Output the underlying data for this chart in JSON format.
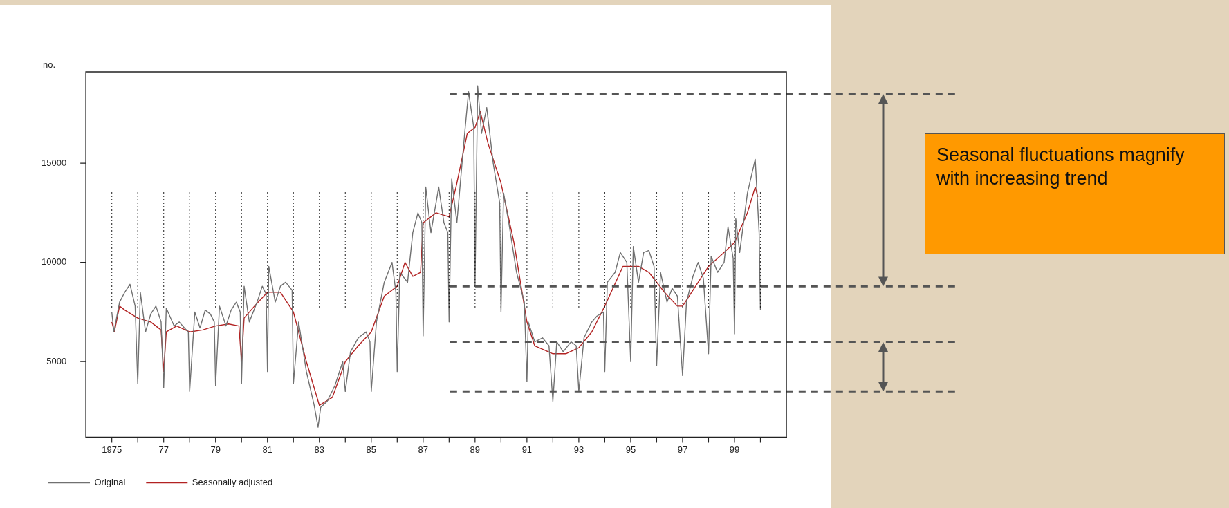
{
  "chart_data": {
    "type": "line",
    "ylabel": "no.",
    "xlim": [
      1974,
      2001
    ],
    "ylim": [
      1200,
      19600
    ],
    "yticks": [
      5000,
      10000,
      15000
    ],
    "xticks": [
      1975,
      {
        "value": 1976,
        "label": null
      },
      {
        "value": 1977,
        "label": "77"
      },
      {
        "value": 1978,
        "label": null
      },
      {
        "value": 1979,
        "label": "79"
      },
      {
        "value": 1980,
        "label": null
      },
      {
        "value": 1981,
        "label": "81"
      },
      {
        "value": 1982,
        "label": null
      },
      {
        "value": 1983,
        "label": "83"
      },
      {
        "value": 1984,
        "label": null
      },
      {
        "value": 1985,
        "label": "85"
      },
      {
        "value": 1986,
        "label": null
      },
      {
        "value": 1987,
        "label": "87"
      },
      {
        "value": 1988,
        "label": null
      },
      {
        "value": 1989,
        "label": "89"
      },
      {
        "value": 1990,
        "label": null
      },
      {
        "value": 1991,
        "label": "91"
      },
      {
        "value": 1992,
        "label": null
      },
      {
        "value": 1993,
        "label": "93"
      },
      {
        "value": 1994,
        "label": null
      },
      {
        "value": 1995,
        "label": "95"
      },
      {
        "value": 1996,
        "label": null
      },
      {
        "value": 1997,
        "label": "97"
      },
      {
        "value": 1998,
        "label": null
      },
      {
        "value": 1999,
        "label": "99"
      },
      {
        "value": 2000,
        "label": null
      }
    ],
    "grid": false,
    "legend": "bottom",
    "marker": "none",
    "series": [
      {
        "name": "Original",
        "color": "#707070",
        "x": [
          1975.0,
          1975.08,
          1975.3,
          1975.5,
          1975.7,
          1975.9,
          1976.0,
          1976.1,
          1976.3,
          1976.5,
          1976.7,
          1976.9,
          1977.0,
          1977.1,
          1977.4,
          1977.6,
          1977.8,
          1977.95,
          1978.0,
          1978.2,
          1978.4,
          1978.6,
          1978.8,
          1978.95,
          1979.0,
          1979.15,
          1979.4,
          1979.6,
          1979.8,
          1979.95,
          1980.0,
          1980.1,
          1980.3,
          1980.6,
          1980.8,
          1980.95,
          1981.0,
          1981.05,
          1981.3,
          1981.5,
          1981.7,
          1981.95,
          1982.0,
          1982.2,
          1982.5,
          1982.8,
          1982.95,
          1983.05,
          1983.3,
          1983.6,
          1983.9,
          1984.0,
          1984.2,
          1984.5,
          1984.8,
          1984.95,
          1985.0,
          1985.2,
          1985.5,
          1985.8,
          1985.95,
          1986.0,
          1986.1,
          1986.4,
          1986.6,
          1986.8,
          1986.95,
          1987.0,
          1987.1,
          1987.3,
          1987.6,
          1987.8,
          1987.95,
          1988.0,
          1988.1,
          1988.3,
          1988.6,
          1988.75,
          1988.95,
          1989.0,
          1989.1,
          1989.25,
          1989.45,
          1989.7,
          1989.95,
          1990.0,
          1990.1,
          1990.3,
          1990.6,
          1990.9,
          1991.0,
          1991.05,
          1991.3,
          1991.6,
          1991.85,
          1992.0,
          1992.15,
          1992.4,
          1992.7,
          1992.9,
          1993.0,
          1993.2,
          1993.5,
          1993.7,
          1993.95,
          1994.0,
          1994.1,
          1994.4,
          1994.6,
          1994.85,
          1995.0,
          1995.1,
          1995.3,
          1995.5,
          1995.7,
          1995.9,
          1996.0,
          1996.15,
          1996.4,
          1996.6,
          1996.8,
          1997.0,
          1997.15,
          1997.4,
          1997.6,
          1997.8,
          1998.0,
          1998.1,
          1998.35,
          1998.6,
          1998.75,
          1998.95,
          1999.0,
          1999.05,
          1999.2,
          1999.5,
          1999.8,
          1999.95,
          2000.0
        ],
        "values": [
          7500,
          6500,
          8000,
          8500,
          8900,
          7800,
          3900,
          8500,
          6500,
          7400,
          7800,
          7000,
          3700,
          7700,
          6800,
          7000,
          6700,
          6500,
          3500,
          7500,
          6700,
          7600,
          7400,
          7000,
          3800,
          7800,
          6800,
          7600,
          8000,
          7500,
          3900,
          8800,
          7000,
          8000,
          8800,
          8400,
          4500,
          9800,
          8000,
          8800,
          9000,
          8600,
          3900,
          7000,
          4500,
          2800,
          1700,
          2700,
          3000,
          3800,
          5000,
          3500,
          5500,
          6200,
          6500,
          6000,
          3500,
          7000,
          9000,
          10000,
          8500,
          4500,
          9500,
          9000,
          11500,
          12500,
          12000,
          6300,
          13800,
          11500,
          13800,
          12000,
          11500,
          7000,
          14200,
          12000,
          16500,
          18600,
          16800,
          8800,
          18900,
          16500,
          17800,
          15000,
          13000,
          7500,
          13500,
          12000,
          9500,
          8000,
          4000,
          7000,
          6000,
          6200,
          5800,
          3000,
          6000,
          5500,
          6000,
          5800,
          3500,
          6200,
          7000,
          7300,
          7500,
          4500,
          9000,
          9500,
          10500,
          10000,
          5000,
          10800,
          9000,
          10500,
          10600,
          9800,
          4800,
          9500,
          8000,
          8700,
          8300,
          4300,
          8000,
          9300,
          10000,
          9200,
          5400,
          10300,
          9500,
          10000,
          11800,
          10200,
          6400,
          12200,
          10500,
          13500,
          15200,
          11500,
          7600
        ]
      },
      {
        "name": "Seasonally adjusted",
        "color": "#b22222",
        "x": [
          1975.0,
          1975.1,
          1975.3,
          1975.5,
          1976.0,
          1976.5,
          1976.9,
          1977.0,
          1977.1,
          1977.5,
          1978.0,
          1978.5,
          1979.0,
          1979.5,
          1979.9,
          1980.0,
          1980.1,
          1980.5,
          1981.0,
          1981.5,
          1982.0,
          1982.5,
          1983.0,
          1983.5,
          1984.0,
          1984.5,
          1985.0,
          1985.5,
          1986.0,
          1986.3,
          1986.6,
          1986.9,
          1987.0,
          1987.5,
          1988.0,
          1988.3,
          1988.7,
          1989.0,
          1989.2,
          1989.5,
          1990.0,
          1990.5,
          1991.0,
          1991.3,
          1992.0,
          1992.5,
          1993.0,
          1993.5,
          1994.0,
          1994.7,
          1995.3,
          1995.7,
          1996.3,
          1996.8,
          1997.0,
          1997.6,
          1998.0,
          1998.6,
          1999.0,
          1999.5,
          1999.8,
          1999.9
        ],
        "values": [
          7000,
          6500,
          7800,
          7600,
          7200,
          7000,
          6600,
          4500,
          6500,
          6800,
          6500,
          6600,
          6800,
          6900,
          6800,
          5000,
          7200,
          7800,
          8500,
          8500,
          7500,
          5000,
          2800,
          3200,
          5000,
          5800,
          6500,
          8300,
          8800,
          10000,
          9300,
          9500,
          12000,
          12500,
          12300,
          14000,
          16500,
          16800,
          17600,
          16000,
          14000,
          11000,
          7000,
          5800,
          5400,
          5400,
          5700,
          6500,
          7800,
          9800,
          9800,
          9500,
          8500,
          7800,
          7800,
          9000,
          9800,
          10500,
          11000,
          12500,
          13800,
          13300
        ]
      }
    ],
    "ref_lines": [
      {
        "axis": "x",
        "value": 1975,
        "line_style": "dotted",
        "color": "#000000"
      },
      {
        "axis": "x",
        "value": 1976,
        "line_style": "dotted",
        "color": "#000000"
      },
      {
        "axis": "x",
        "value": 1977,
        "line_style": "dotted",
        "color": "#000000"
      },
      {
        "axis": "x",
        "value": 1978,
        "line_style": "dotted",
        "color": "#000000"
      },
      {
        "axis": "x",
        "value": 1979,
        "line_style": "dotted",
        "color": "#000000"
      },
      {
        "axis": "x",
        "value": 1980,
        "line_style": "dotted",
        "color": "#000000"
      },
      {
        "axis": "x",
        "value": 1981,
        "line_style": "dotted",
        "color": "#000000"
      },
      {
        "axis": "x",
        "value": 1982,
        "line_style": "dotted",
        "color": "#000000"
      },
      {
        "axis": "x",
        "value": 1983,
        "line_style": "dotted",
        "color": "#000000"
      },
      {
        "axis": "x",
        "value": 1984,
        "line_style": "dotted",
        "color": "#000000"
      },
      {
        "axis": "x",
        "value": 1985,
        "line_style": "dotted",
        "color": "#000000"
      },
      {
        "axis": "x",
        "value": 1986,
        "line_style": "dotted",
        "color": "#000000"
      },
      {
        "axis": "x",
        "value": 1987,
        "line_style": "dotted",
        "color": "#000000"
      },
      {
        "axis": "x",
        "value": 1988,
        "line_style": "dotted",
        "color": "#000000"
      },
      {
        "axis": "x",
        "value": 1989,
        "line_style": "dotted",
        "color": "#000000"
      },
      {
        "axis": "x",
        "value": 1990,
        "line_style": "dotted",
        "color": "#000000"
      },
      {
        "axis": "x",
        "value": 1991,
        "line_style": "dotted",
        "color": "#000000"
      },
      {
        "axis": "x",
        "value": 1992,
        "line_style": "dotted",
        "color": "#000000"
      },
      {
        "axis": "x",
        "value": 1993,
        "line_style": "dotted",
        "color": "#000000"
      },
      {
        "axis": "x",
        "value": 1994,
        "line_style": "dotted",
        "color": "#000000"
      },
      {
        "axis": "x",
        "value": 1995,
        "line_style": "dotted",
        "color": "#000000"
      },
      {
        "axis": "x",
        "value": 1996,
        "line_style": "dotted",
        "color": "#000000"
      },
      {
        "axis": "x",
        "value": 1997,
        "line_style": "dotted",
        "color": "#000000"
      },
      {
        "axis": "x",
        "value": 1998,
        "line_style": "dotted",
        "color": "#000000"
      },
      {
        "axis": "x",
        "value": 1999,
        "line_style": "dotted",
        "color": "#000000"
      },
      {
        "axis": "x",
        "value": 2000,
        "line_style": "dotted",
        "color": "#000000"
      },
      {
        "axis": "y",
        "value": 18500,
        "line_style": "dashed",
        "color": "#555555"
      },
      {
        "axis": "y",
        "value": 8800,
        "line_style": "dashed",
        "color": "#555555"
      },
      {
        "axis": "y",
        "value": 6000,
        "line_style": "dashed",
        "color": "#555555"
      },
      {
        "axis": "y",
        "value": 3500,
        "line_style": "dashed",
        "color": "#555555"
      }
    ],
    "annotations": [
      "Seasonal fluctuations magnify with increasing trend"
    ]
  }
}
